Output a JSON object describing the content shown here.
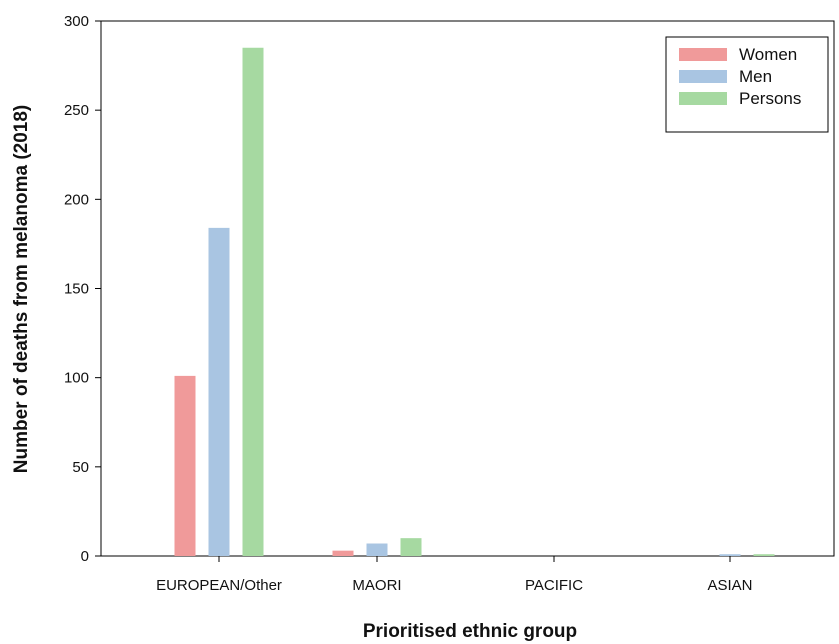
{
  "chart_data": {
    "type": "bar",
    "title": "",
    "xlabel": "Prioritised ethnic group",
    "ylabel": "Number of deaths from melanoma (2018)",
    "categories": [
      "EUROPEAN/Other",
      "MAORI",
      "PACIFIC",
      "ASIAN"
    ],
    "series": [
      {
        "name": "Women",
        "color": "#f09a9a",
        "values": [
          101,
          3,
          0,
          0
        ]
      },
      {
        "name": "Men",
        "color": "#a9c5e2",
        "values": [
          184,
          7,
          0,
          1
        ]
      },
      {
        "name": "Persons",
        "color": "#a6d9a1",
        "values": [
          285,
          10,
          0,
          1
        ]
      }
    ],
    "ylim": [
      0,
      300
    ],
    "yticks": [
      0,
      50,
      100,
      150,
      200,
      250,
      300
    ],
    "grid": false,
    "legend_position": "top-right"
  }
}
